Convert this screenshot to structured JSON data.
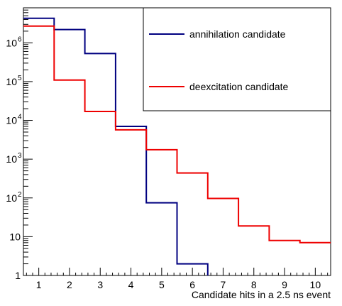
{
  "chart_data": {
    "type": "line",
    "step": true,
    "xlabel": "Candidate hits in a 2.5 ns event",
    "ylabel": "",
    "xlim": [
      0.5,
      10.5
    ],
    "ylim": [
      1,
      8000000
    ],
    "yscale": "log",
    "grid": false,
    "legend_position": "top-right",
    "x_ticks": [
      "1",
      "2",
      "3",
      "4",
      "5",
      "6",
      "7",
      "8",
      "9",
      "10"
    ],
    "y_ticks": [
      {
        "value": 1,
        "label": "1"
      },
      {
        "value": 10,
        "label": "10"
      },
      {
        "value": 100,
        "label": "10",
        "exp": "2"
      },
      {
        "value": 1000,
        "label": "10",
        "exp": "3"
      },
      {
        "value": 10000,
        "label": "10",
        "exp": "4"
      },
      {
        "value": 100000,
        "label": "10",
        "exp": "5"
      },
      {
        "value": 1000000,
        "label": "10",
        "exp": "6"
      }
    ],
    "bin_edges": [
      0.5,
      1.5,
      2.5,
      3.5,
      4.5,
      5.5,
      6.5,
      7.5,
      8.5,
      9.5,
      10.5
    ],
    "series": [
      {
        "name": "annihilation candidate",
        "color": "#000080",
        "values": [
          4300000,
          2200000,
          530000,
          7000,
          75,
          2,
          1,
          1,
          1,
          1
        ]
      },
      {
        "name": "deexcitation candidate",
        "color": "#ee0000",
        "values": [
          2700000,
          110000,
          17000,
          5700,
          1750,
          440,
          97,
          19,
          8,
          7
        ]
      }
    ]
  }
}
